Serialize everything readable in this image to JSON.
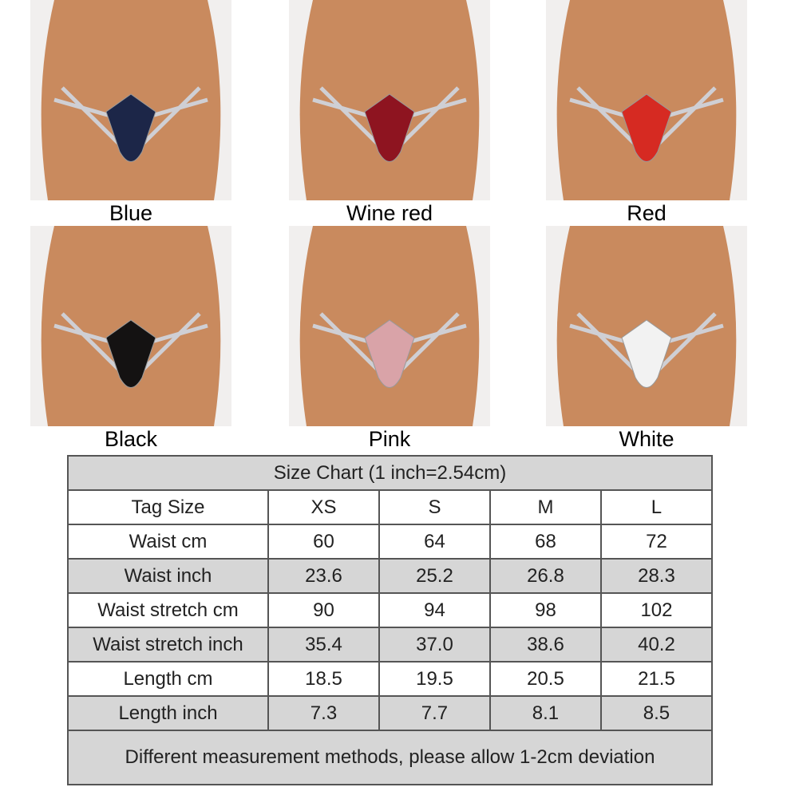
{
  "variants": [
    {
      "label": "Blue",
      "color": "#1c2648"
    },
    {
      "label": "Wine red",
      "color": "#8e1420"
    },
    {
      "label": "Red",
      "color": "#d62a22"
    },
    {
      "label": "Black",
      "color": "#141212"
    },
    {
      "label": "Pink",
      "color": "#d9a3a8"
    },
    {
      "label": "White",
      "color": "#f2f2f2"
    }
  ],
  "size_chart": {
    "title": "Size Chart (1 inch=2.54cm)",
    "header": [
      "Tag Size",
      "XS",
      "S",
      "M",
      "L"
    ],
    "rows": [
      [
        "Waist cm",
        "60",
        "64",
        "68",
        "72"
      ],
      [
        "Waist inch",
        "23.6",
        "25.2",
        "26.8",
        "28.3"
      ],
      [
        "Waist stretch cm",
        "90",
        "94",
        "98",
        "102"
      ],
      [
        "Waist stretch inch",
        "35.4",
        "37.0",
        "38.6",
        "40.2"
      ],
      [
        "Length cm",
        "18.5",
        "19.5",
        "20.5",
        "21.5"
      ],
      [
        "Length inch",
        "7.3",
        "7.7",
        "8.1",
        "8.5"
      ]
    ],
    "note": "Different measurement methods, please allow 1-2cm deviation"
  }
}
